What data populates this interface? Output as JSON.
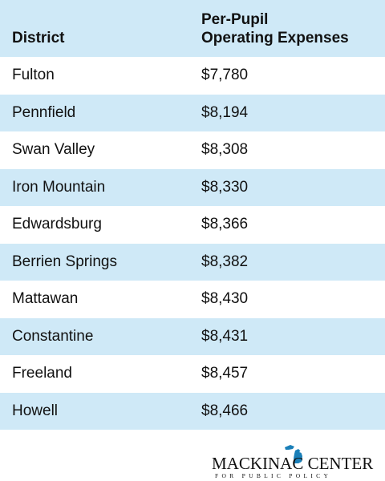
{
  "chart_data": {
    "type": "table",
    "columns": [
      "District",
      "Per-Pupil Operating Expenses"
    ],
    "column_lines": [
      [
        "District"
      ],
      [
        "Per-Pupil",
        "Operating Expenses"
      ]
    ],
    "rows": [
      [
        "Fulton",
        "$7,780"
      ],
      [
        "Pennfield",
        "$8,194"
      ],
      [
        "Swan Valley",
        "$8,308"
      ],
      [
        "Iron Mountain",
        "$8,330"
      ],
      [
        "Edwardsburg",
        "$8,366"
      ],
      [
        "Berrien Springs",
        "$8,382"
      ],
      [
        "Mattawan",
        "$8,430"
      ],
      [
        "Constantine",
        "$8,431"
      ],
      [
        "Freeland",
        "$8,457"
      ],
      [
        "Howell",
        "$8,466"
      ]
    ]
  },
  "colors": {
    "stripe": "#cfe9f7",
    "text": "#111111",
    "logo_accent": "#1a7fb8"
  },
  "logo": {
    "name": "MACKINAC CENTER",
    "tagline": "FOR PUBLIC POLICY",
    "icon": "michigan-map-icon"
  }
}
